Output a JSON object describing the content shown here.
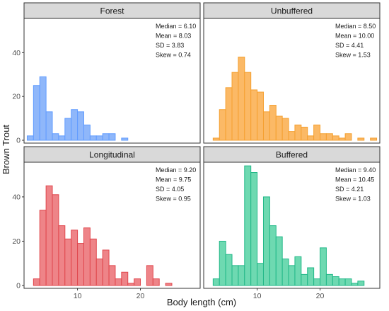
{
  "chart_data": {
    "type": "bar",
    "xlabel": "Body length (cm)",
    "ylabel": "Brown Trout",
    "xlim": [
      1.5,
      29.5
    ],
    "ylim": [
      0,
      55
    ],
    "x_ticks": [
      10,
      20
    ],
    "y_ticks": [
      0,
      20,
      40
    ],
    "bin_width": 1,
    "bin_starts": [
      2,
      3,
      4,
      5,
      6,
      7,
      8,
      9,
      10,
      11,
      12,
      13,
      14,
      15,
      16,
      17,
      18,
      19,
      20,
      21,
      22,
      23,
      24,
      25,
      26,
      27,
      28
    ],
    "grid": false,
    "panels": [
      {
        "title": "Forest",
        "color": "#619CFF",
        "fill": "#8FB7FA",
        "stats": [
          "Median = 6.10",
          "Mean = 8.03",
          "SD = 3.83",
          "Skew = 0.74"
        ],
        "values": [
          2,
          25,
          29,
          13,
          3,
          2,
          10,
          14,
          13,
          7,
          2,
          2,
          3,
          3,
          0,
          1,
          0,
          0,
          0,
          0,
          0,
          0,
          0,
          0,
          0,
          0,
          0
        ]
      },
      {
        "title": "Unbuffered",
        "color": "#F5A030",
        "fill": "#FBB966",
        "stats": [
          "Median = 8.50",
          "Mean = 10.00",
          "SD = 4.41",
          "Skew = 1.53"
        ],
        "values": [
          0,
          1,
          14,
          24,
          31,
          38,
          31,
          23,
          22,
          13,
          16,
          11,
          10,
          4,
          7,
          6,
          2,
          7,
          3,
          3,
          2,
          1,
          3,
          0,
          1,
          0,
          1
        ]
      },
      {
        "title": "Longitudinal",
        "color": "#E0474D",
        "fill": "#EE8488",
        "stats": [
          "Median = 9.20",
          "Mean = 9.75",
          "SD = 4.05",
          "Skew = 0.95"
        ],
        "values": [
          0,
          3,
          34,
          45,
          41,
          27,
          21,
          25,
          19,
          26,
          21,
          12,
          16,
          9,
          3,
          6,
          1,
          3,
          0,
          9,
          3,
          0,
          1,
          0,
          0,
          0,
          0
        ]
      },
      {
        "title": "Buffered",
        "color": "#22B888",
        "fill": "#6ED9B1",
        "stats": [
          "Median = 9.40",
          "Mean = 10.45",
          "SD = 4.21",
          "Skew = 1.03"
        ],
        "values": [
          0,
          3,
          20,
          14,
          9,
          9,
          54,
          51,
          10,
          40,
          27,
          22,
          12,
          9,
          13,
          5,
          8,
          3,
          17,
          5,
          4,
          3,
          3,
          1,
          2,
          0,
          0
        ]
      }
    ]
  }
}
